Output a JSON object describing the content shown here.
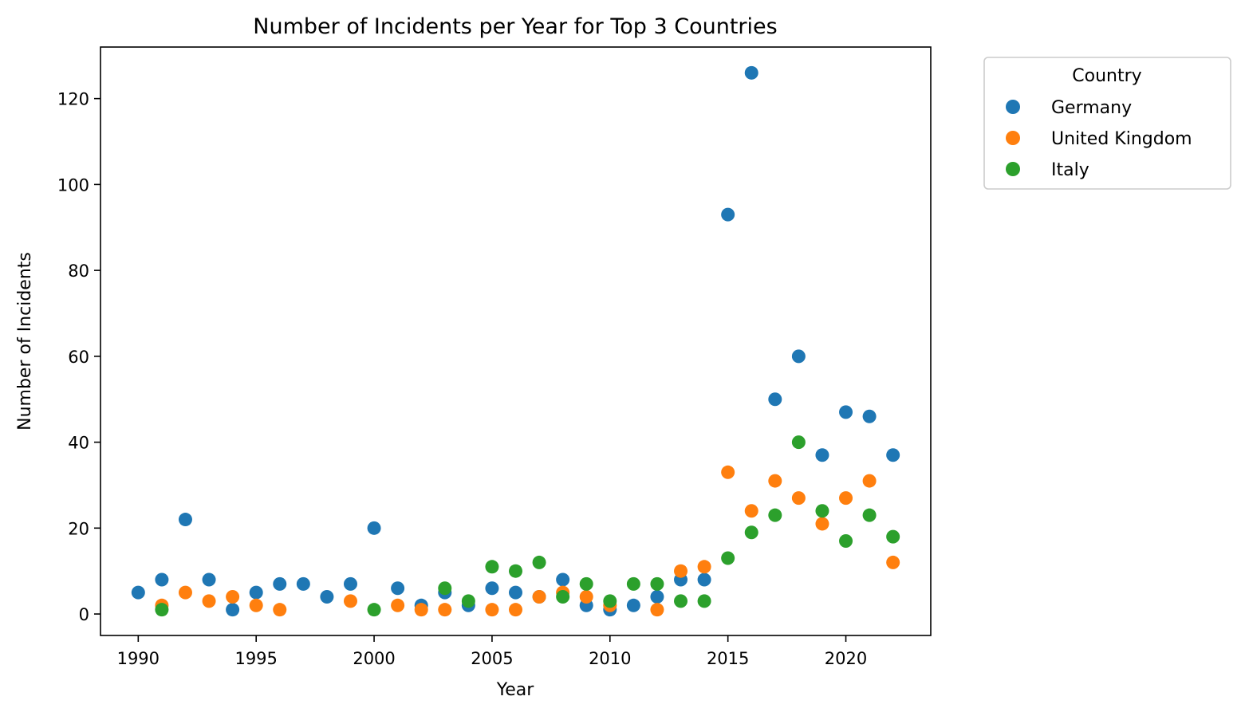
{
  "chart_data": {
    "type": "scatter",
    "title": "Number of Incidents per Year for Top 3 Countries",
    "xlabel": "Year",
    "ylabel": "Number of Incidents",
    "xlim": [
      1988.4,
      2023.6
    ],
    "ylim": [
      -5,
      132
    ],
    "xticks": [
      1990,
      1995,
      2000,
      2005,
      2010,
      2015,
      2020
    ],
    "yticks": [
      0,
      20,
      40,
      60,
      80,
      100,
      120
    ],
    "grid": false,
    "legend": {
      "title": "Country",
      "placement": "outside-upper-right"
    },
    "series": [
      {
        "name": "Germany",
        "color": "#1f77b4",
        "points": [
          [
            1990,
            5
          ],
          [
            1991,
            8
          ],
          [
            1992,
            22
          ],
          [
            1993,
            8
          ],
          [
            1994,
            1
          ],
          [
            1995,
            5
          ],
          [
            1996,
            7
          ],
          [
            1997,
            7
          ],
          [
            1998,
            4
          ],
          [
            1999,
            7
          ],
          [
            2000,
            20
          ],
          [
            2001,
            6
          ],
          [
            2002,
            2
          ],
          [
            2003,
            5
          ],
          [
            2004,
            2
          ],
          [
            2005,
            6
          ],
          [
            2006,
            5
          ],
          [
            2007,
            4
          ],
          [
            2008,
            8
          ],
          [
            2009,
            2
          ],
          [
            2010,
            1
          ],
          [
            2011,
            2
          ],
          [
            2012,
            4
          ],
          [
            2013,
            8
          ],
          [
            2014,
            8
          ],
          [
            2015,
            93
          ],
          [
            2016,
            126
          ],
          [
            2017,
            50
          ],
          [
            2018,
            60
          ],
          [
            2019,
            37
          ],
          [
            2020,
            47
          ],
          [
            2021,
            46
          ],
          [
            2022,
            37
          ]
        ]
      },
      {
        "name": "United Kingdom",
        "color": "#ff7f0e",
        "points": [
          [
            1991,
            2
          ],
          [
            1992,
            5
          ],
          [
            1993,
            3
          ],
          [
            1994,
            4
          ],
          [
            1995,
            2
          ],
          [
            1996,
            1
          ],
          [
            1999,
            3
          ],
          [
            2001,
            2
          ],
          [
            2002,
            1
          ],
          [
            2003,
            1
          ],
          [
            2005,
            1
          ],
          [
            2006,
            1
          ],
          [
            2007,
            4
          ],
          [
            2008,
            5
          ],
          [
            2009,
            4
          ],
          [
            2010,
            2
          ],
          [
            2012,
            1
          ],
          [
            2013,
            10
          ],
          [
            2014,
            11
          ],
          [
            2015,
            33
          ],
          [
            2016,
            24
          ],
          [
            2017,
            31
          ],
          [
            2018,
            27
          ],
          [
            2019,
            21
          ],
          [
            2020,
            27
          ],
          [
            2021,
            31
          ],
          [
            2022,
            12
          ]
        ]
      },
      {
        "name": "Italy",
        "color": "#2ca02c",
        "points": [
          [
            1991,
            1
          ],
          [
            2000,
            1
          ],
          [
            2003,
            6
          ],
          [
            2004,
            3
          ],
          [
            2005,
            11
          ],
          [
            2006,
            10
          ],
          [
            2007,
            12
          ],
          [
            2008,
            4
          ],
          [
            2009,
            7
          ],
          [
            2010,
            3
          ],
          [
            2011,
            7
          ],
          [
            2012,
            7
          ],
          [
            2013,
            3
          ],
          [
            2014,
            3
          ],
          [
            2015,
            13
          ],
          [
            2016,
            19
          ],
          [
            2017,
            23
          ],
          [
            2018,
            40
          ],
          [
            2019,
            24
          ],
          [
            2020,
            17
          ],
          [
            2021,
            23
          ],
          [
            2022,
            18
          ]
        ]
      }
    ]
  }
}
